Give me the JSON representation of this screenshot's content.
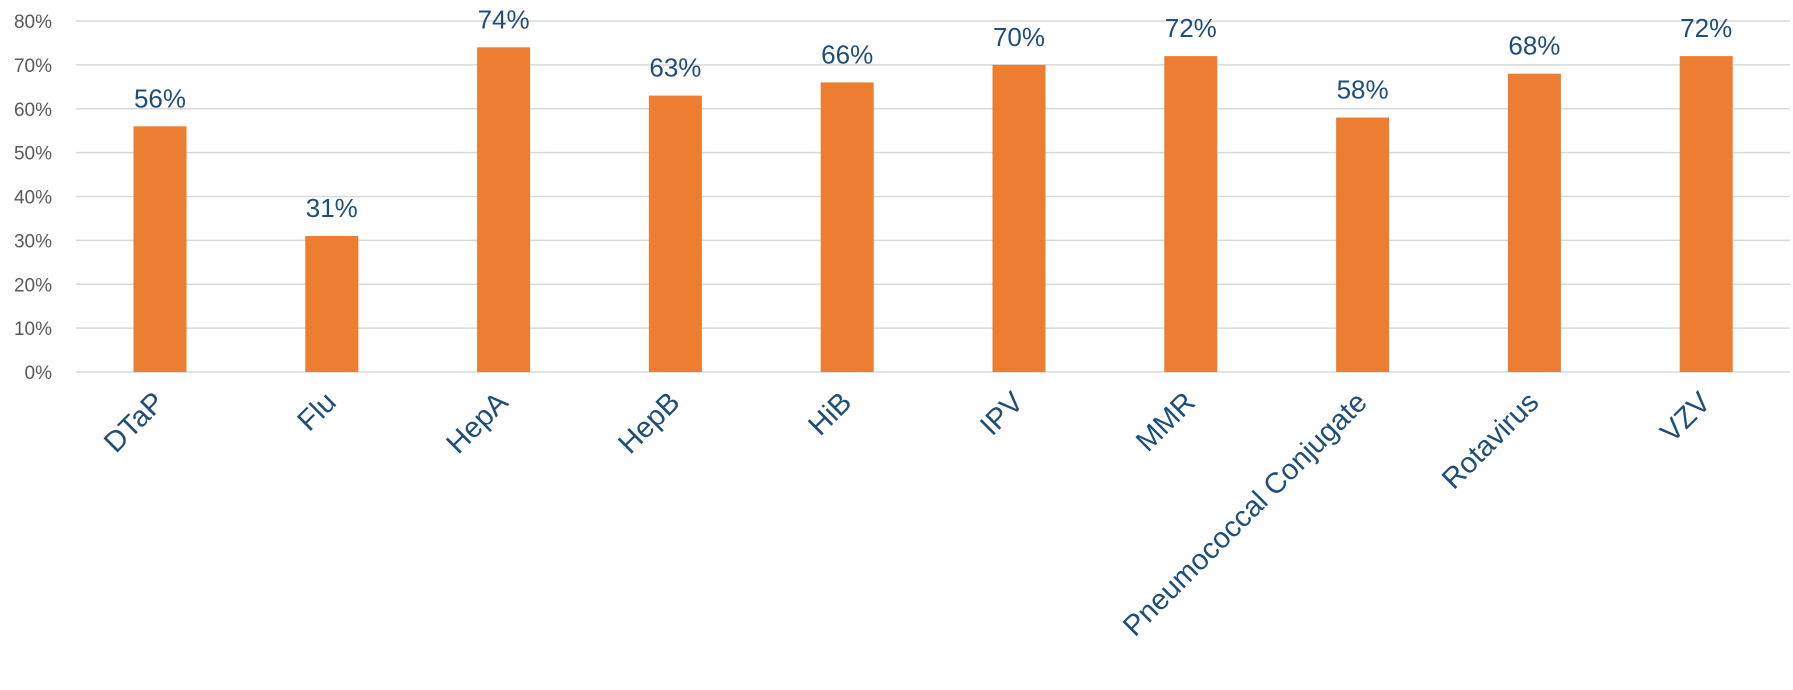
{
  "chart_data": {
    "type": "bar",
    "title": "",
    "xlabel": "",
    "ylabel": "",
    "categories": [
      "DTaP",
      "Flu",
      "HepA",
      "HepB",
      "HiB",
      "IPV",
      "MMR",
      "Pneumococcal Conjugate",
      "Rotavirus",
      "VZV"
    ],
    "values": [
      56,
      31,
      74,
      63,
      66,
      70,
      72,
      58,
      68,
      72
    ],
    "data_labels": [
      "56%",
      "31%",
      "74%",
      "63%",
      "66%",
      "70%",
      "72%",
      "58%",
      "68%",
      "72%"
    ],
    "ylim": [
      0,
      80
    ],
    "yticks": [
      0,
      10,
      20,
      30,
      40,
      50,
      60,
      70,
      80
    ],
    "ytick_labels": [
      "0%",
      "10%",
      "20%",
      "30%",
      "40%",
      "50%",
      "60%",
      "70%",
      "80%"
    ],
    "grid": true,
    "legend": "none",
    "colors": {
      "bar": "#ED7D31",
      "label": "#1F4E79",
      "tick": "#595959",
      "grid": "#D9D9D9"
    }
  }
}
